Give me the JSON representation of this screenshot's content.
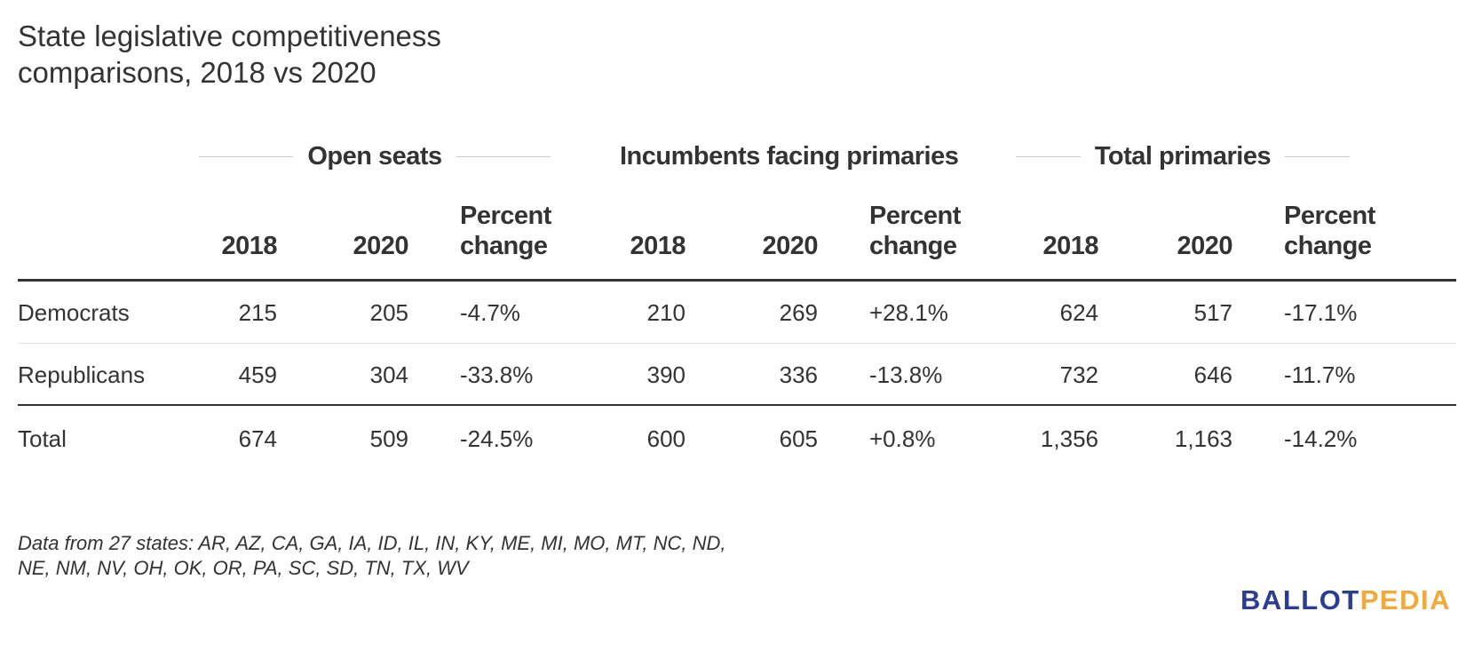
{
  "title_lines": [
    "State legislative competitiveness",
    "comparisons, 2018 vs 2020"
  ],
  "groups": [
    {
      "label": "Open seats"
    },
    {
      "label": "Incumbents facing primaries"
    },
    {
      "label": "Total primaries"
    }
  ],
  "columns": {
    "year_a": "2018",
    "year_b": "2020",
    "pct_line1": "Percent",
    "pct_line2": "change"
  },
  "chart_data": {
    "type": "table",
    "title": "State legislative competitiveness comparisons, 2018 vs 2020",
    "column_groups": [
      "Open seats",
      "Incumbents facing primaries",
      "Total primaries"
    ],
    "columns": [
      "2018",
      "2020",
      "Percent change"
    ],
    "rows": [
      {
        "label": "Democrats",
        "values": [
          "215",
          "205",
          "-4.7%",
          "210",
          "269",
          "+28.1%",
          "624",
          "517",
          "-17.1%"
        ]
      },
      {
        "label": "Republicans",
        "values": [
          "459",
          "304",
          "-33.8%",
          "390",
          "336",
          "-13.8%",
          "732",
          "646",
          "-11.7%"
        ]
      },
      {
        "label": "Total",
        "values": [
          "674",
          "509",
          "-24.5%",
          "600",
          "605",
          "+0.8%",
          "1,356",
          "1,163",
          "-14.2%"
        ]
      }
    ]
  },
  "footnote_lines": [
    "Data from 27 states: AR, AZ, CA, GA, IA, ID, IL, IN, KY, ME, MI, MO, MT, NC, ND,",
    "NE, NM, NV, OH, OK, OR, PA, SC, SD, TN, TX, WV"
  ],
  "logo": {
    "part1": "BALLOT",
    "part2": "PEDIA",
    "color1": "#2a3d92",
    "color2": "#f2a83a"
  }
}
